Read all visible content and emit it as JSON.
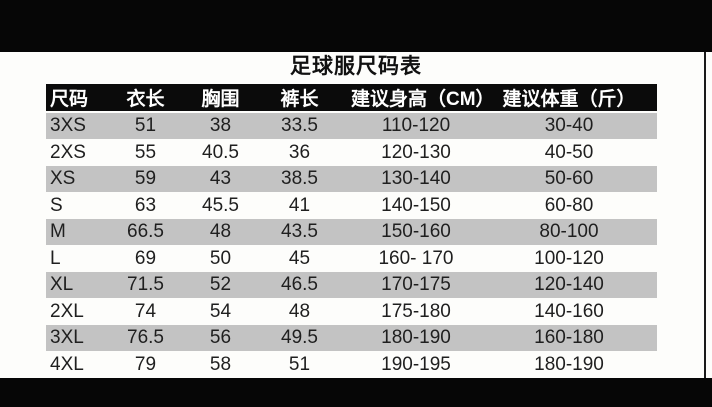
{
  "page": {
    "title": "足球服尺码表"
  },
  "table": {
    "headers": [
      "尺码",
      "衣长",
      "胸围",
      "裤长",
      "建议身高（CM）",
      "建议体重（斤）"
    ],
    "rows": [
      [
        "3XS",
        "51",
        "38",
        "33.5",
        "110-120",
        "30-40"
      ],
      [
        "2XS",
        "55",
        "40.5",
        "36",
        "120-130",
        "40-50"
      ],
      [
        "XS",
        "59",
        "43",
        "38.5",
        "130-140",
        "50-60"
      ],
      [
        "S",
        "63",
        "45.5",
        "41",
        "140-150",
        "60-80"
      ],
      [
        "M",
        "66.5",
        "48",
        "43.5",
        "150-160",
        "80-100"
      ],
      [
        "L",
        "69",
        "50",
        "45",
        "160- 170",
        "100-120"
      ],
      [
        "XL",
        "71.5",
        "52",
        "46.5",
        "170-175",
        "120-140"
      ],
      [
        "2XL",
        "74",
        "54",
        "48",
        "175-180",
        "140-160"
      ],
      [
        "3XL",
        "76.5",
        "56",
        "49.5",
        "180-190",
        "160-180"
      ],
      [
        "4XL",
        "79",
        "58",
        "51",
        "190-195",
        "180-190"
      ]
    ]
  },
  "colors": {
    "stripe_gray": "#c3c3c3",
    "header_bg": "#0b0b0b",
    "frame_black": "#060606",
    "body_text": "#1f1f1f",
    "header_text": "#ffffff",
    "page_bg": "#fdfdfb"
  }
}
